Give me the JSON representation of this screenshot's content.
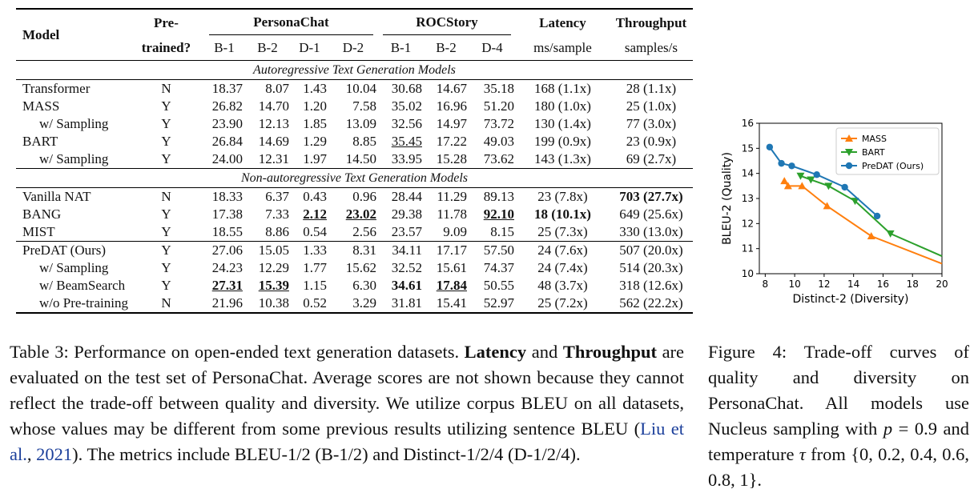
{
  "table": {
    "header": {
      "model": "Model",
      "pretrained_line1": "Pre-",
      "pretrained_line2": "trained?",
      "persona": "PersonaChat",
      "roc": "ROCStory",
      "latency": "Latency",
      "latency_unit": "ms/sample",
      "throughput": "Throughput",
      "throughput_unit": "samples/s",
      "sub": [
        "B-1",
        "B-2",
        "D-1",
        "D-2",
        "B-1",
        "B-2",
        "D-4"
      ]
    },
    "sections": [
      {
        "title": "Autoregressive Text Generation Models",
        "rows": [
          {
            "model": "Transformer",
            "pre": "N",
            "vals": [
              "18.37",
              "8.07",
              "1.43",
              "10.04",
              "30.68",
              "14.67",
              "35.18"
            ],
            "lat": "168 (1.1x)",
            "thr": "28 (1.1x)"
          },
          {
            "model": "MASS",
            "pre": "Y",
            "vals": [
              "26.82",
              "14.70",
              "1.20",
              "7.58",
              "35.02",
              "16.96",
              "51.20"
            ],
            "lat": "180 (1.0x)",
            "thr": "25 (1.0x)"
          },
          {
            "model": "w/ Sampling",
            "pre": "Y",
            "vals": [
              "23.90",
              "12.13",
              "1.85",
              "13.09",
              "32.56",
              "14.97",
              "73.72"
            ],
            "lat": "130 (1.4x)",
            "thr": "77 (3.0x)"
          },
          {
            "model": "BART",
            "pre": "Y",
            "vals": [
              "26.84",
              "14.69",
              "1.29",
              "8.85",
              "35.45",
              "17.22",
              "49.03"
            ],
            "lat": "199 (0.9x)",
            "thr": "23 (0.9x)"
          },
          {
            "model": "w/ Sampling",
            "pre": "Y",
            "vals": [
              "24.00",
              "12.31",
              "1.97",
              "14.50",
              "33.95",
              "15.28",
              "73.62"
            ],
            "lat": "143 (1.3x)",
            "thr": "69 (2.7x)"
          }
        ]
      },
      {
        "title": "Non-autoregressive Text Generation Models",
        "rows": [
          {
            "model": "Vanilla NAT",
            "pre": "N",
            "vals": [
              "18.33",
              "6.37",
              "0.43",
              "0.96",
              "28.44",
              "11.29",
              "89.13"
            ],
            "lat": "23 (7.8x)",
            "thr": "703 (27.7x)"
          },
          {
            "model": "BANG",
            "pre": "Y",
            "vals": [
              "17.38",
              "7.33",
              "2.12",
              "23.02",
              "29.38",
              "11.78",
              "92.10"
            ],
            "lat": "18 (10.1x)",
            "thr": "649 (25.6x)"
          },
          {
            "model": "MIST",
            "pre": "Y",
            "vals": [
              "18.55",
              "8.86",
              "0.54",
              "2.56",
              "23.57",
              "9.09",
              "8.15"
            ],
            "lat": "25 (7.3x)",
            "thr": "330 (13.0x)"
          }
        ]
      },
      {
        "title": "",
        "rows": [
          {
            "model": "PreDAT (Ours)",
            "pre": "Y",
            "vals": [
              "27.06",
              "15.05",
              "1.33",
              "8.31",
              "34.11",
              "17.17",
              "57.50"
            ],
            "lat": "24 (7.6x)",
            "thr": "507 (20.0x)"
          },
          {
            "model": "w/ Sampling",
            "pre": "Y",
            "vals": [
              "24.23",
              "12.29",
              "1.77",
              "15.62",
              "32.52",
              "15.61",
              "74.37"
            ],
            "lat": "24 (7.4x)",
            "thr": "514 (20.3x)"
          },
          {
            "model": "w/ BeamSearch",
            "pre": "Y",
            "vals": [
              "27.31",
              "15.39",
              "1.15",
              "6.30",
              "34.61",
              "17.84",
              "50.55"
            ],
            "lat": "48 (3.7x)",
            "thr": "318 (12.6x)"
          },
          {
            "model": "w/o Pre-training",
            "pre": "N",
            "vals": [
              "21.96",
              "10.38",
              "0.52",
              "3.29",
              "31.81",
              "15.41",
              "52.97"
            ],
            "lat": "25 (7.2x)",
            "thr": "562 (22.2x)"
          }
        ]
      }
    ]
  },
  "caption3": {
    "label": "Table 3: Performance on open-ended text generation datasets.",
    "bold1": "Latency",
    "and": "and",
    "bold2": "Throughput",
    "text1": "are evaluated on the test set of PersonaChat. Average scores are not shown because they cannot reflect the trade-off between quality and diversity. We utilize corpus BLEU on all datasets, whose values may be different from some previous results utilizing sentence BLEU (",
    "cite_author": "Liu et al.",
    "cite_sep": ", ",
    "cite_year": "2021",
    "text2": "). The metrics include BLEU-1/2 (B-1/2) and Distinct-1/2/4 (D-1/2/4)."
  },
  "caption4": {
    "text1": "Figure 4: Trade-off curves of quality and diversity on PersonaChat. All models use Nucleus sampling with",
    "p": "p",
    "eq": "= 0.9",
    "text2": "and temperature",
    "tau": "τ",
    "text3": "from",
    "set": "{0, 0.2, 0.4, 0.6, 0.8, 1}."
  },
  "chart_data": {
    "type": "line",
    "title": "",
    "xlabel": "Distinct-2 (Diversity)",
    "ylabel": "BLEU-2 (Quality)",
    "xlim": [
      7.6,
      20
    ],
    "ylim": [
      10,
      16
    ],
    "xticks": [
      8,
      10,
      12,
      14,
      16,
      18,
      20
    ],
    "yticks": [
      10,
      11,
      12,
      13,
      14,
      15,
      16
    ],
    "legend_position": "top-right",
    "series": [
      {
        "name": "MASS",
        "color": "#ff7f0e",
        "marker": "triangle-up",
        "x": [
          9.3,
          9.55,
          10.5,
          12.2,
          15.2,
          20
        ],
        "y": [
          13.7,
          13.5,
          13.5,
          12.7,
          11.5,
          10.4
        ]
      },
      {
        "name": "BART",
        "color": "#2ca02c",
        "marker": "triangle-down",
        "x": [
          10.4,
          11.1,
          12.3,
          14.1,
          16.5,
          20
        ],
        "y": [
          13.9,
          13.75,
          13.5,
          12.9,
          11.6,
          10.7
        ]
      },
      {
        "name": "PreDAT (Ours)",
        "color": "#1f77b4",
        "marker": "circle",
        "x": [
          8.3,
          9.1,
          9.8,
          11.5,
          13.4,
          15.6
        ],
        "y": [
          15.05,
          14.4,
          14.3,
          13.95,
          13.45,
          12.3
        ]
      }
    ]
  }
}
